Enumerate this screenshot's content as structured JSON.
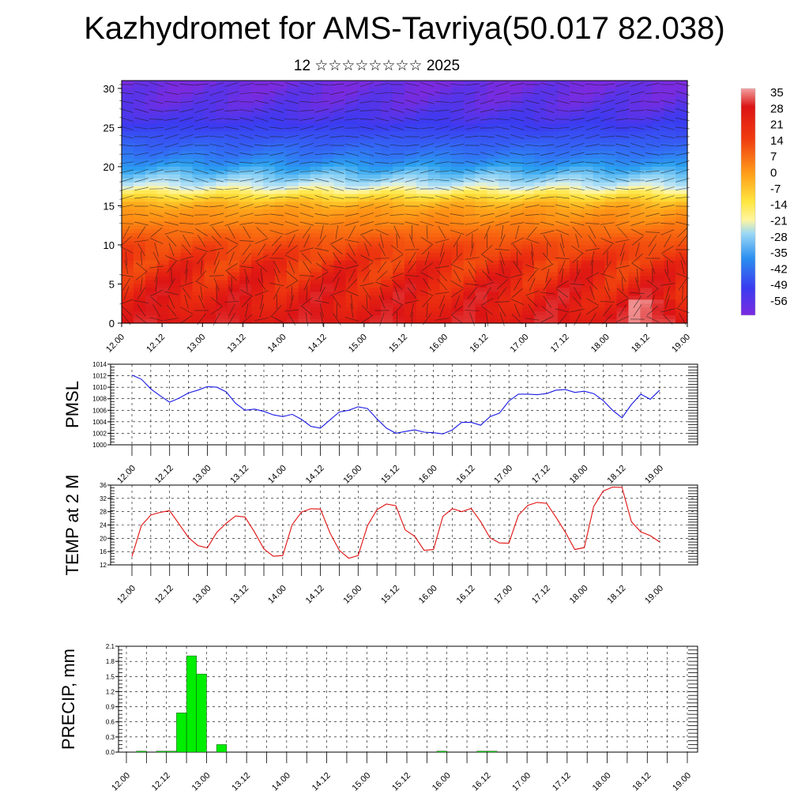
{
  "title": "Kazhydromet for AMS-Tavriya(50.017 82.038)",
  "subtitle": "12 ☆☆☆☆☆☆☆☆ 2025",
  "colors": {
    "pmsl_line": "#1a1ae6",
    "temp_line": "#e01010",
    "precip_bar": "#00ee00"
  },
  "time_ticks": [
    "12.00",
    "12.12",
    "13.00",
    "13.12",
    "14.00",
    "14.12",
    "15.00",
    "15.12",
    "16.00",
    "16.12",
    "17.00",
    "17.12",
    "18.00",
    "18.12",
    "19.00"
  ],
  "chart_data": [
    {
      "id": "profile",
      "type": "heatmap",
      "description_overlay": "wind barbs",
      "ylim": [
        0,
        31
      ],
      "yticks": [
        0,
        5,
        10,
        15,
        20,
        25,
        30
      ],
      "colorbar": {
        "labels": [
          "35",
          "28",
          "21",
          "14",
          "7",
          "0",
          "-7",
          "-14",
          "-21",
          "-28",
          "-35",
          "-42",
          "-49",
          "-56"
        ],
        "range": [
          -60,
          38
        ]
      },
      "level_temperature_profile": {
        "levels": [
          0,
          2,
          4,
          6,
          8,
          10,
          12,
          14,
          15,
          16,
          17,
          18,
          19,
          20,
          21,
          22,
          24,
          26,
          28,
          30,
          31
        ],
        "temps": [
          32,
          30,
          29,
          27,
          25,
          22,
          17,
          12,
          8,
          0,
          -10,
          -18,
          -24,
          -30,
          -36,
          -40,
          -46,
          -52,
          -56,
          -58,
          -60
        ]
      }
    },
    {
      "id": "pmsl",
      "type": "line",
      "ylabel": "PMSL",
      "ylim": [
        1000,
        1014
      ],
      "yticks": [
        1000,
        1002,
        1004,
        1006,
        1008,
        1010,
        1012,
        1014
      ],
      "x": [
        0,
        3,
        6,
        9,
        12,
        15,
        18,
        21,
        24,
        27,
        30,
        33,
        36,
        39,
        42,
        45,
        48,
        51,
        54,
        57,
        60,
        63,
        66,
        69,
        72,
        75,
        78,
        81,
        84,
        87,
        90,
        93,
        96,
        99,
        102,
        105,
        108,
        111,
        114,
        117,
        120,
        123,
        126,
        129,
        132,
        135,
        138,
        141,
        144,
        147,
        150,
        153,
        156,
        159,
        162,
        165,
        168
      ],
      "values": [
        1012.1,
        1011.4,
        1009.7,
        1008.5,
        1007.4,
        1008.1,
        1009.0,
        1009.5,
        1010.1,
        1010.0,
        1009.2,
        1007.2,
        1006.0,
        1006.2,
        1005.8,
        1005.2,
        1004.9,
        1005.3,
        1004.4,
        1003.2,
        1002.9,
        1004.3,
        1005.7,
        1006.0,
        1006.6,
        1006.3,
        1004.5,
        1002.9,
        1002.0,
        1002.3,
        1002.6,
        1002.2,
        1002.1,
        1001.9,
        1002.6,
        1003.9,
        1003.9,
        1003.4,
        1004.9,
        1005.5,
        1007.6,
        1008.8,
        1008.8,
        1008.7,
        1008.9,
        1009.5,
        1009.6,
        1009.1,
        1009.3,
        1008.9,
        1007.7,
        1006.0,
        1004.7,
        1007.0,
        1008.8,
        1007.9,
        1009.5
      ]
    },
    {
      "id": "temp2m",
      "type": "line",
      "ylabel": "TEMP at 2 M",
      "ylim": [
        12,
        36
      ],
      "yticks": [
        12,
        16,
        20,
        24,
        28,
        32,
        36
      ],
      "x": [
        0,
        3,
        6,
        9,
        12,
        15,
        18,
        21,
        24,
        27,
        30,
        33,
        36,
        39,
        42,
        45,
        48,
        51,
        54,
        57,
        60,
        63,
        66,
        69,
        72,
        75,
        78,
        81,
        84,
        87,
        90,
        93,
        96,
        99,
        102,
        105,
        108,
        111,
        114,
        117,
        120,
        123,
        126,
        129,
        132,
        135,
        138,
        141,
        144,
        147,
        150,
        153,
        156,
        159,
        162,
        165,
        168
      ],
      "values": [
        14.5,
        23.8,
        27.0,
        27.8,
        28.3,
        24.3,
        20.2,
        17.8,
        17.1,
        21.8,
        24.5,
        26.7,
        26.4,
        21.9,
        16.8,
        14.6,
        14.8,
        24.1,
        27.9,
        28.9,
        28.8,
        21.7,
        16.4,
        14.0,
        14.8,
        23.8,
        28.6,
        30.3,
        29.8,
        22.5,
        20.6,
        16.4,
        16.6,
        26.6,
        28.9,
        28.0,
        29.0,
        25.0,
        20.1,
        18.6,
        18.5,
        26.9,
        29.9,
        30.8,
        30.5,
        26.3,
        21.8,
        16.6,
        17.2,
        29.6,
        34.2,
        35.4,
        35.3,
        25.0,
        21.9,
        20.8,
        18.9
      ]
    },
    {
      "id": "precip",
      "type": "bar",
      "ylabel": "PRECIP, mm",
      "ylim": [
        0,
        2.1
      ],
      "yticks": [
        "0.0",
        "0.3",
        "0.6",
        "0.9",
        "1.2",
        "1.5",
        "1.8",
        "2.1"
      ],
      "x": [
        3,
        6,
        9,
        12,
        15,
        18,
        21,
        24,
        27,
        30,
        33,
        36,
        39,
        42,
        45,
        48,
        51,
        54,
        57,
        60,
        63,
        66,
        69,
        72,
        75,
        78,
        81,
        84,
        87,
        90,
        93,
        96,
        99,
        102,
        105,
        108,
        111,
        114,
        117,
        120,
        123,
        126,
        129,
        132,
        135,
        138,
        141,
        144,
        147,
        150,
        153,
        156,
        159,
        162,
        165,
        168
      ],
      "values": [
        0.0,
        0.02,
        0.0,
        0.02,
        0.02,
        0.78,
        1.91,
        1.55,
        0.0,
        0.15,
        0,
        0,
        0,
        0,
        0,
        0,
        0,
        0,
        0,
        0,
        0,
        0,
        0,
        0,
        0,
        0,
        0,
        0,
        0,
        0,
        0,
        0.02,
        0,
        0,
        0,
        0.02,
        0.02,
        0,
        0,
        0,
        0,
        0,
        0,
        0,
        0,
        0,
        0,
        0,
        0,
        0,
        0,
        0,
        0,
        0,
        0,
        0
      ]
    }
  ]
}
